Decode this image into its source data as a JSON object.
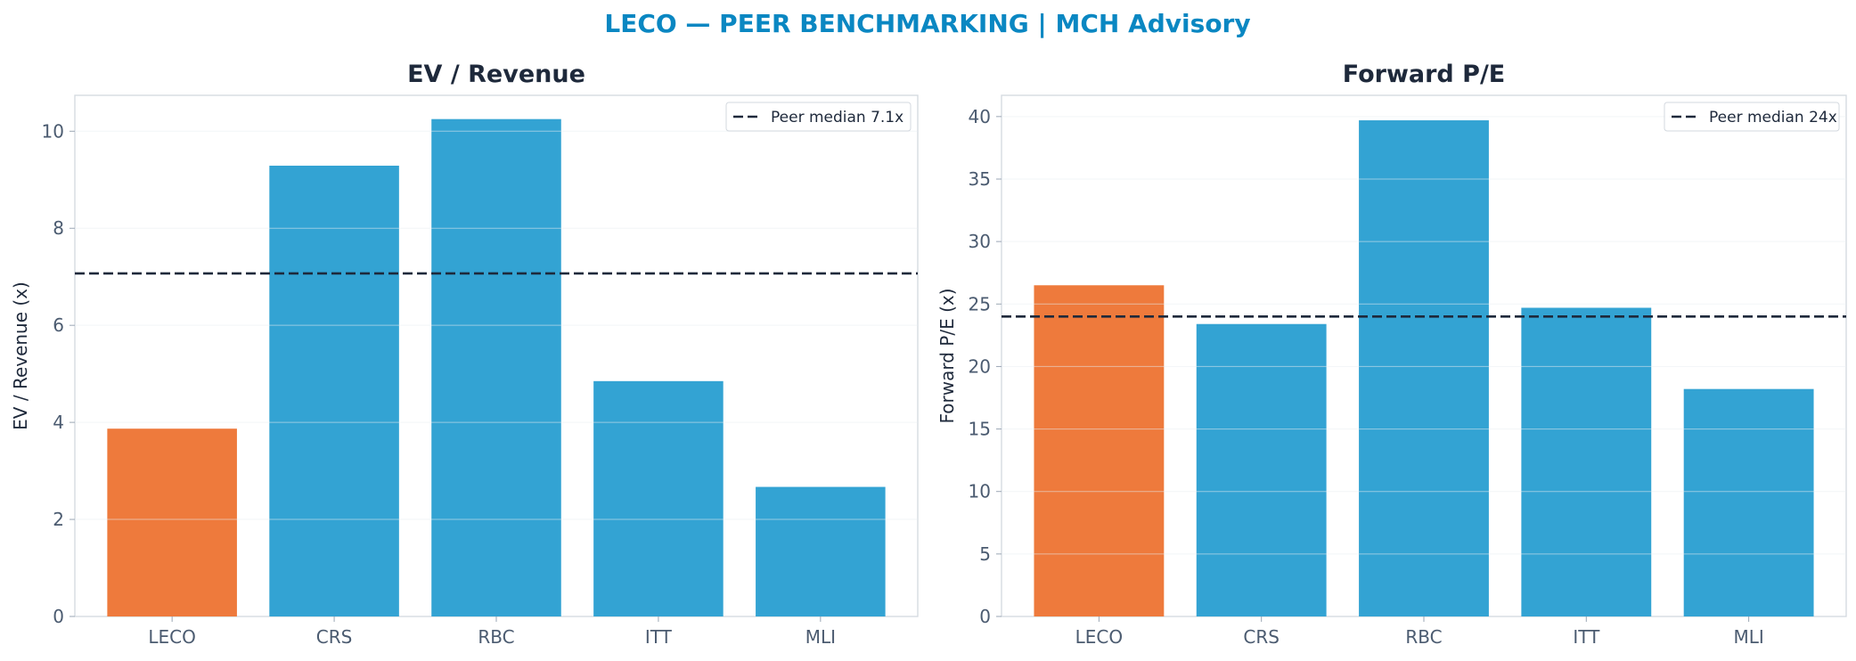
{
  "figure_title": "LECO — PEER BENCHMARKING | MCH Advisory",
  "colors": {
    "title": "#0a87c2",
    "highlight": "#ee7a3c",
    "peer": "#33a3d3",
    "median_line": "#1e293b"
  },
  "chart_data": [
    {
      "type": "bar",
      "title": "EV / Revenue",
      "xlabel": "",
      "ylabel": "EV / Revenue (x)",
      "categories": [
        "LECO",
        "CRS",
        "RBC",
        "ITT",
        "MLI"
      ],
      "values": [
        3.87,
        9.29,
        10.25,
        4.85,
        2.67
      ],
      "highlight_index": 0,
      "ylim": [
        0,
        10.74
      ],
      "yticks": [
        0,
        2,
        4,
        6,
        8,
        10
      ],
      "grid": "horizontal",
      "reference_line": {
        "value": 7.07,
        "label": "Peer median 7.1x",
        "style": "dashed"
      },
      "legend_position": "top-right"
    },
    {
      "type": "bar",
      "title": "Forward P/E",
      "xlabel": "",
      "ylabel": "Forward P/E (x)",
      "categories": [
        "LECO",
        "CRS",
        "RBC",
        "ITT",
        "MLI"
      ],
      "values": [
        26.5,
        23.4,
        39.7,
        24.7,
        18.2
      ],
      "highlight_index": 0,
      "ylim": [
        0,
        41.7
      ],
      "yticks": [
        0,
        5,
        10,
        15,
        20,
        25,
        30,
        35,
        40
      ],
      "grid": "horizontal",
      "reference_line": {
        "value": 24.0,
        "label": "Peer median 24x",
        "style": "dashed"
      },
      "legend_position": "top-right"
    }
  ]
}
